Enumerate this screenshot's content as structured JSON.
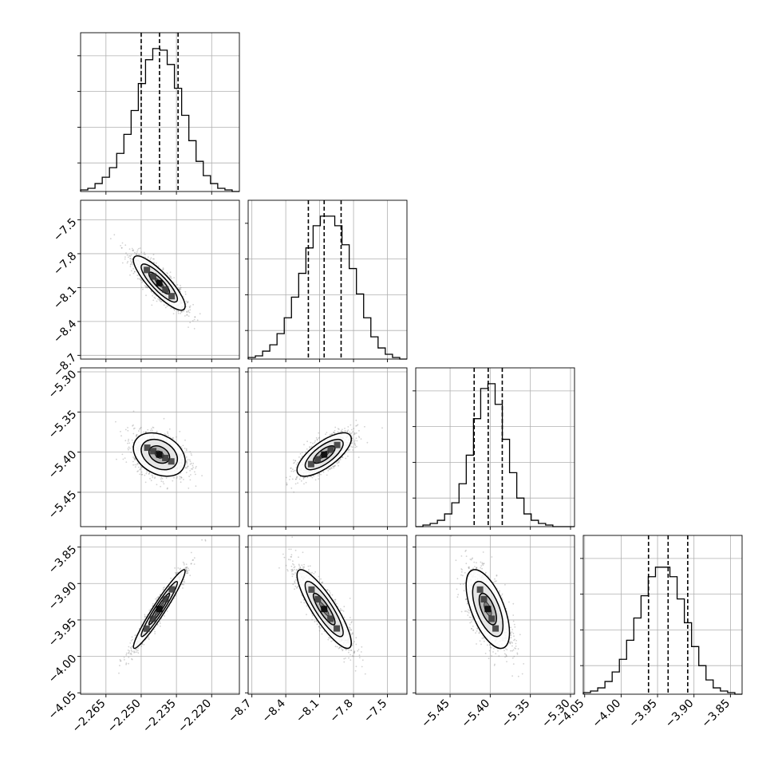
{
  "chart_data": {
    "type": "corner",
    "params": [
      {
        "ticks": [
          "−2.265",
          "−2.250",
          "−2.235",
          "−2.220"
        ],
        "tick_values": [
          -2.265,
          -2.25,
          -2.235,
          -2.22
        ],
        "range": [
          -2.2758,
          -2.2082
        ],
        "quantiles": [
          -2.25,
          -2.2422,
          -2.2343
        ]
      },
      {
        "ticks": [
          "−8.7",
          "−8.4",
          "−8.1",
          "−7.8",
          "−7.5"
        ],
        "tick_values": [
          -8.7,
          -8.4,
          -8.1,
          -7.8,
          -7.5
        ],
        "range": [
          -8.733,
          -7.327
        ],
        "quantiles": [
          -8.2,
          -8.06,
          -7.91
        ]
      },
      {
        "ticks": [
          "−5.45",
          "−5.40",
          "−5.35",
          "−5.30"
        ],
        "tick_values": [
          -5.45,
          -5.4,
          -5.35,
          -5.3
        ],
        "range": [
          -5.4928,
          -5.295
        ],
        "quantiles": [
          -5.42,
          -5.4025,
          -5.385
        ]
      },
      {
        "ticks": [
          "−4.05",
          "−4.00",
          "−3.95",
          "−3.90",
          "−3.85"
        ],
        "tick_values": [
          -4.05,
          -4.0,
          -3.95,
          -3.9,
          -3.85
        ],
        "range": [
          -4.0519,
          -3.834
        ],
        "quantiles": [
          -3.9624,
          -3.9355,
          -3.9086
        ]
      }
    ],
    "histograms": [
      [
        1,
        2,
        5,
        9,
        15,
        24,
        36,
        51,
        68,
        83,
        90,
        89,
        80,
        65,
        48,
        32,
        19,
        10,
        5,
        2,
        1,
        0
      ],
      [
        1,
        2,
        5,
        9,
        16,
        26,
        39,
        54,
        70,
        84,
        90,
        90,
        84,
        72,
        57,
        41,
        26,
        14,
        7,
        3,
        1,
        0
      ],
      [
        0,
        1,
        2,
        4,
        8,
        15,
        27,
        45,
        68,
        87,
        90,
        77,
        55,
        34,
        18,
        8,
        4,
        2,
        1,
        0,
        0,
        0
      ],
      [
        1,
        2,
        4,
        8,
        14,
        22,
        34,
        48,
        62,
        74,
        80,
        80,
        74,
        60,
        45,
        30,
        18,
        9,
        4,
        2,
        1,
        0
      ]
    ],
    "pairs": [
      {
        "row": 1,
        "col": 0,
        "mean": [
          -2.2423,
          -8.06
        ],
        "sd": [
          0.0055,
          0.12
        ],
        "corr": -0.85
      },
      {
        "row": 2,
        "col": 0,
        "mean": [
          -2.2423,
          -5.403
        ],
        "sd": [
          0.0055,
          0.0135
        ],
        "corr": -0.3
      },
      {
        "row": 2,
        "col": 1,
        "mean": [
          -8.06,
          -5.403
        ],
        "sd": [
          0.12,
          0.0135
        ],
        "corr": 0.72
      },
      {
        "row": 3,
        "col": 0,
        "mean": [
          -2.2423,
          -3.935
        ],
        "sd": [
          0.0055,
          0.027
        ],
        "corr": 0.96
      },
      {
        "row": 3,
        "col": 1,
        "mean": [
          -8.06,
          -3.935
        ],
        "sd": [
          0.12,
          0.027
        ],
        "corr": -0.86
      },
      {
        "row": 3,
        "col": 2,
        "mean": [
          -5.403,
          -3.935
        ],
        "sd": [
          0.0135,
          0.027
        ],
        "corr": -0.6
      }
    ],
    "grid": true,
    "colors": {
      "line": "#000000",
      "grid": "#b0b0b0",
      "points": "#7f7f7f"
    }
  }
}
